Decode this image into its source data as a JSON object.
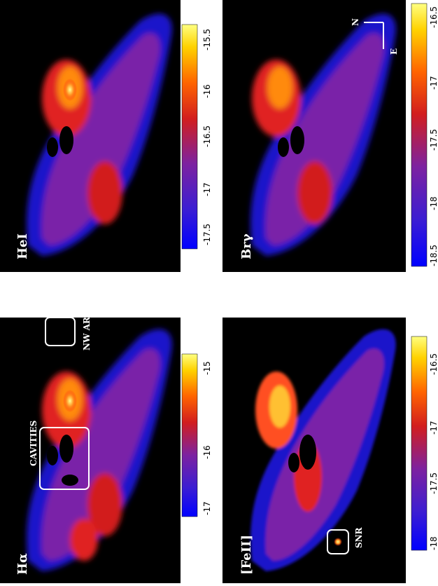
{
  "figure": {
    "panels": [
      {
        "id": "halpha",
        "label": "Hα",
        "annotations": [
          "CAVITIES",
          "NW ARM"
        ],
        "colorbar": {
          "ticks": [
            "-17",
            "-16",
            "-15"
          ]
        }
      },
      {
        "id": "hei",
        "label": "HeI",
        "annotations": [],
        "colorbar": {
          "ticks": [
            "-17.5",
            "-17",
            "-16.5",
            "-16",
            "-15.5"
          ]
        }
      },
      {
        "id": "feii",
        "label": "[FeII]",
        "annotations": [
          "SNR"
        ],
        "colorbar": {
          "ticks": [
            "-18",
            "-17.5",
            "-17",
            "-16.5"
          ]
        }
      },
      {
        "id": "brgamma",
        "label": "Brγ",
        "annotations": [],
        "colorbar": {
          "ticks": [
            "-18.5",
            "-18",
            "-17.5",
            "-17",
            "-16.5"
          ]
        }
      }
    ],
    "compass": {
      "north": "N",
      "east": "E"
    },
    "colormap": [
      "#0000ff",
      "#3c1ed2",
      "#7d22a0",
      "#d21e1e",
      "#ff6400",
      "#ffd200",
      "#ffff80"
    ]
  }
}
